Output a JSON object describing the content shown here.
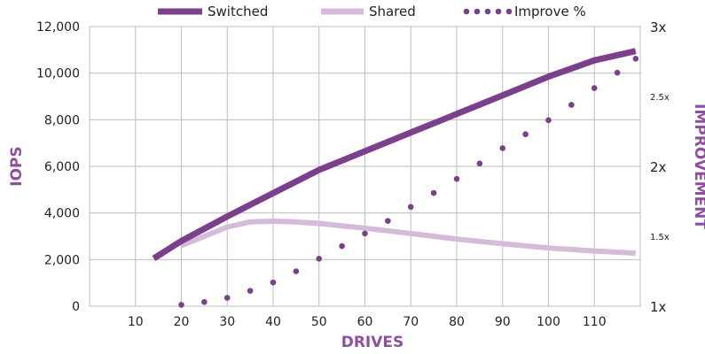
{
  "chart_data": {
    "type": "line",
    "xlabel": "DRIVES",
    "ylabel": "IOPS",
    "y2label": "IMPROVEMENT",
    "xlim": [
      0,
      120
    ],
    "ylim": [
      0,
      12000
    ],
    "y2lim": [
      1,
      3
    ],
    "x_ticks": [
      10,
      20,
      30,
      40,
      50,
      60,
      70,
      80,
      90,
      100,
      110
    ],
    "y_ticks": [
      0,
      2000,
      4000,
      6000,
      8000,
      10000,
      12000
    ],
    "y_tick_labels": [
      "0",
      "2,000",
      "4,000",
      "6,000",
      "8,000",
      "10,000",
      "12,000"
    ],
    "y2_ticks": [
      {
        "value": 1,
        "label": "1x",
        "major": true
      },
      {
        "value": 1.5,
        "label": "1.5x",
        "major": false
      },
      {
        "value": 2,
        "label": "2x",
        "major": true
      },
      {
        "value": 2.5,
        "label": "2.5x",
        "major": false
      },
      {
        "value": 3,
        "label": "3x",
        "major": true
      }
    ],
    "grid": true,
    "legend_position": "top",
    "series": [
      {
        "name": "Switched",
        "axis": "left",
        "style": "solid-thick",
        "color": "#7b3f8c",
        "x": [
          14,
          20,
          30,
          40,
          50,
          60,
          70,
          80,
          90,
          100,
          110,
          119
        ],
        "y": [
          2050,
          2800,
          3850,
          4850,
          5850,
          6650,
          7450,
          8250,
          9050,
          9850,
          10550,
          10950
        ]
      },
      {
        "name": "Shared",
        "axis": "left",
        "style": "solid",
        "color": "#d4bcd9",
        "x": [
          20,
          25,
          30,
          35,
          40,
          45,
          50,
          60,
          70,
          80,
          90,
          100,
          110,
          119
        ],
        "y": [
          2600,
          3000,
          3400,
          3620,
          3650,
          3620,
          3550,
          3350,
          3120,
          2880,
          2680,
          2500,
          2370,
          2280
        ]
      },
      {
        "name": "Improve %",
        "axis": "right",
        "style": "dotted",
        "color": "#7b3f8c",
        "x": [
          20,
          25,
          30,
          35,
          40,
          45,
          50,
          55,
          60,
          65,
          70,
          75,
          80,
          85,
          90,
          95,
          100,
          105,
          110,
          115,
          119
        ],
        "y": [
          1.01,
          1.03,
          1.06,
          1.11,
          1.17,
          1.25,
          1.34,
          1.43,
          1.52,
          1.61,
          1.71,
          1.81,
          1.91,
          2.02,
          2.13,
          2.23,
          2.33,
          2.44,
          2.56,
          2.67,
          2.77
        ]
      }
    ]
  }
}
